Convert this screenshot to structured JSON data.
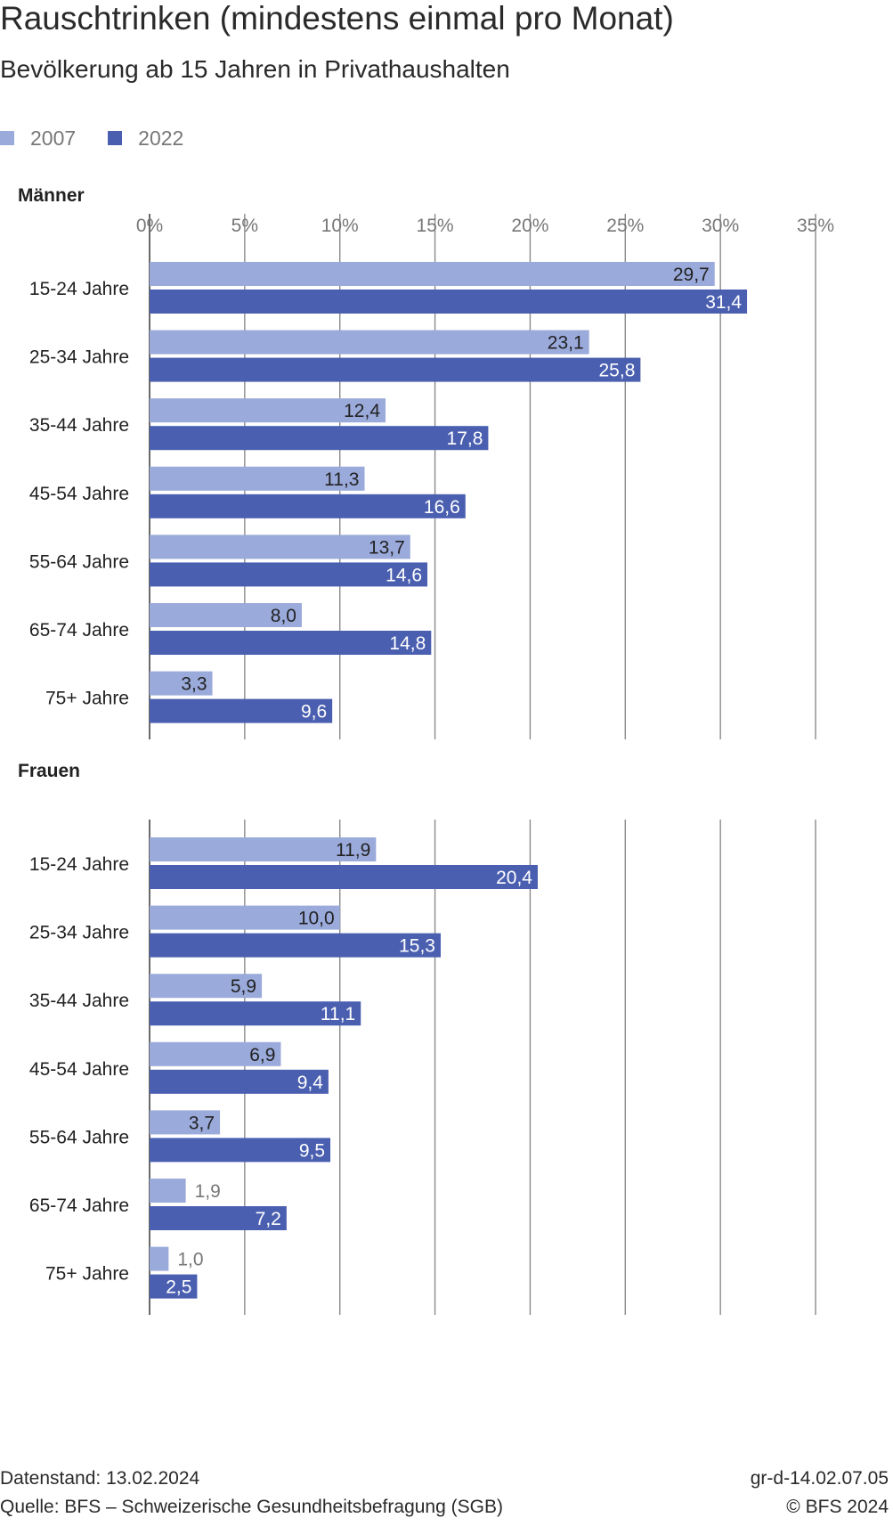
{
  "title": "Rauschtrinken (mindestens einmal pro Monat)",
  "subtitle": "Bevölkerung ab 15 Jahren in Privathaushalten",
  "legend": [
    {
      "label": "2007",
      "color": "#9aaadb"
    },
    {
      "label": "2022",
      "color": "#4a5fb0"
    }
  ],
  "chart_data": {
    "type": "bar",
    "orientation": "horizontal",
    "unit": "%",
    "xlim": [
      0,
      35
    ],
    "xticks": [
      "0%",
      "5%",
      "10%",
      "15%",
      "20%",
      "25%",
      "30%",
      "35%"
    ],
    "grid": true,
    "legend_position": "top-left",
    "series_colors": [
      "#9aaadb",
      "#4a5fb0"
    ],
    "panels": [
      {
        "label": "Männer",
        "categories": [
          "15-24 Jahre",
          "25-34 Jahre",
          "35-44 Jahre",
          "45-54 Jahre",
          "55-64 Jahre",
          "65-74 Jahre",
          "75+ Jahre"
        ],
        "series": [
          {
            "name": "2007",
            "values": [
              29.7,
              23.1,
              12.4,
              11.3,
              13.7,
              8.0,
              3.3
            ],
            "labels": [
              "29,7",
              "23,1",
              "12,4",
              "11,3",
              "13,7",
              "8,0",
              "3,3"
            ]
          },
          {
            "name": "2022",
            "values": [
              31.4,
              25.8,
              17.8,
              16.6,
              14.6,
              14.8,
              9.6
            ],
            "labels": [
              "31,4",
              "25,8",
              "17,8",
              "16,6",
              "14,6",
              "14,8",
              "9,6"
            ]
          }
        ]
      },
      {
        "label": "Frauen",
        "categories": [
          "15-24 Jahre",
          "25-34 Jahre",
          "35-44 Jahre",
          "45-54 Jahre",
          "55-64 Jahre",
          "65-74 Jahre",
          "75+ Jahre"
        ],
        "series": [
          {
            "name": "2007",
            "values": [
              11.9,
              10.0,
              5.9,
              6.9,
              3.7,
              1.9,
              1.0
            ],
            "labels": [
              "11,9",
              "10,0",
              "5,9",
              "6,9",
              "3,7",
              "1,9",
              "1,0"
            ]
          },
          {
            "name": "2022",
            "values": [
              20.4,
              15.3,
              11.1,
              9.4,
              9.5,
              7.2,
              2.5
            ],
            "labels": [
              "20,4",
              "15,3",
              "11,1",
              "9,4",
              "9,5",
              "7,2",
              "2,5"
            ]
          }
        ]
      }
    ]
  },
  "footer": {
    "datenstand": "Datenstand: 13.02.2024",
    "quelle": "Quelle: BFS – Schweizerische Gesundheitsbefragung (SGB)",
    "code": "gr-d-14.02.07.05",
    "copyright": "© BFS 2024"
  }
}
